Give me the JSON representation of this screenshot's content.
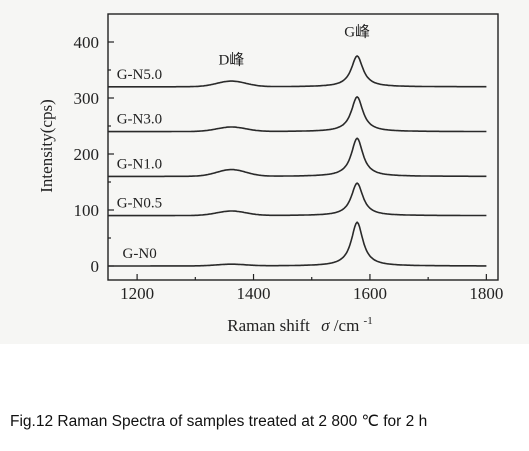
{
  "caption": "Fig.12 Raman Spectra of samples treated at 2 800 ℃ for 2 h",
  "chart_data": {
    "type": "line",
    "xlabel_main": "Raman shift",
    "xlabel_symbol": "σ",
    "xlabel_unit": "/cm",
    "xlabel_sup": "-1",
    "ylabel": "Intensity(cps)",
    "xlim": [
      1150,
      1820
    ],
    "ylim": [
      -25,
      450
    ],
    "xticks": [
      1200,
      1400,
      1600,
      1800
    ],
    "yticks": [
      0,
      100,
      200,
      300,
      400
    ],
    "grid": false,
    "annotations": [
      {
        "text": "D峰",
        "x": 1362,
        "y": 360
      },
      {
        "text": "G峰",
        "x": 1578,
        "y": 410
      }
    ],
    "series": [
      {
        "name": "G-N0",
        "baseline": 0,
        "d_height": 3,
        "g_height": 78,
        "label_x": 1175
      },
      {
        "name": "G-N0.5",
        "baseline": 90,
        "d_height": 8,
        "g_height": 58,
        "label_x": 1165
      },
      {
        "name": "G-N1.0",
        "baseline": 160,
        "d_height": 12,
        "g_height": 68,
        "label_x": 1165
      },
      {
        "name": "G-N3.0",
        "baseline": 240,
        "d_height": 8,
        "g_height": 62,
        "label_x": 1165
      },
      {
        "name": "G-N5.0",
        "baseline": 320,
        "d_height": 10,
        "g_height": 55,
        "label_x": 1165
      }
    ],
    "d_center": 1362,
    "d_width": 35,
    "g_center": 1578,
    "g_width": 12
  }
}
